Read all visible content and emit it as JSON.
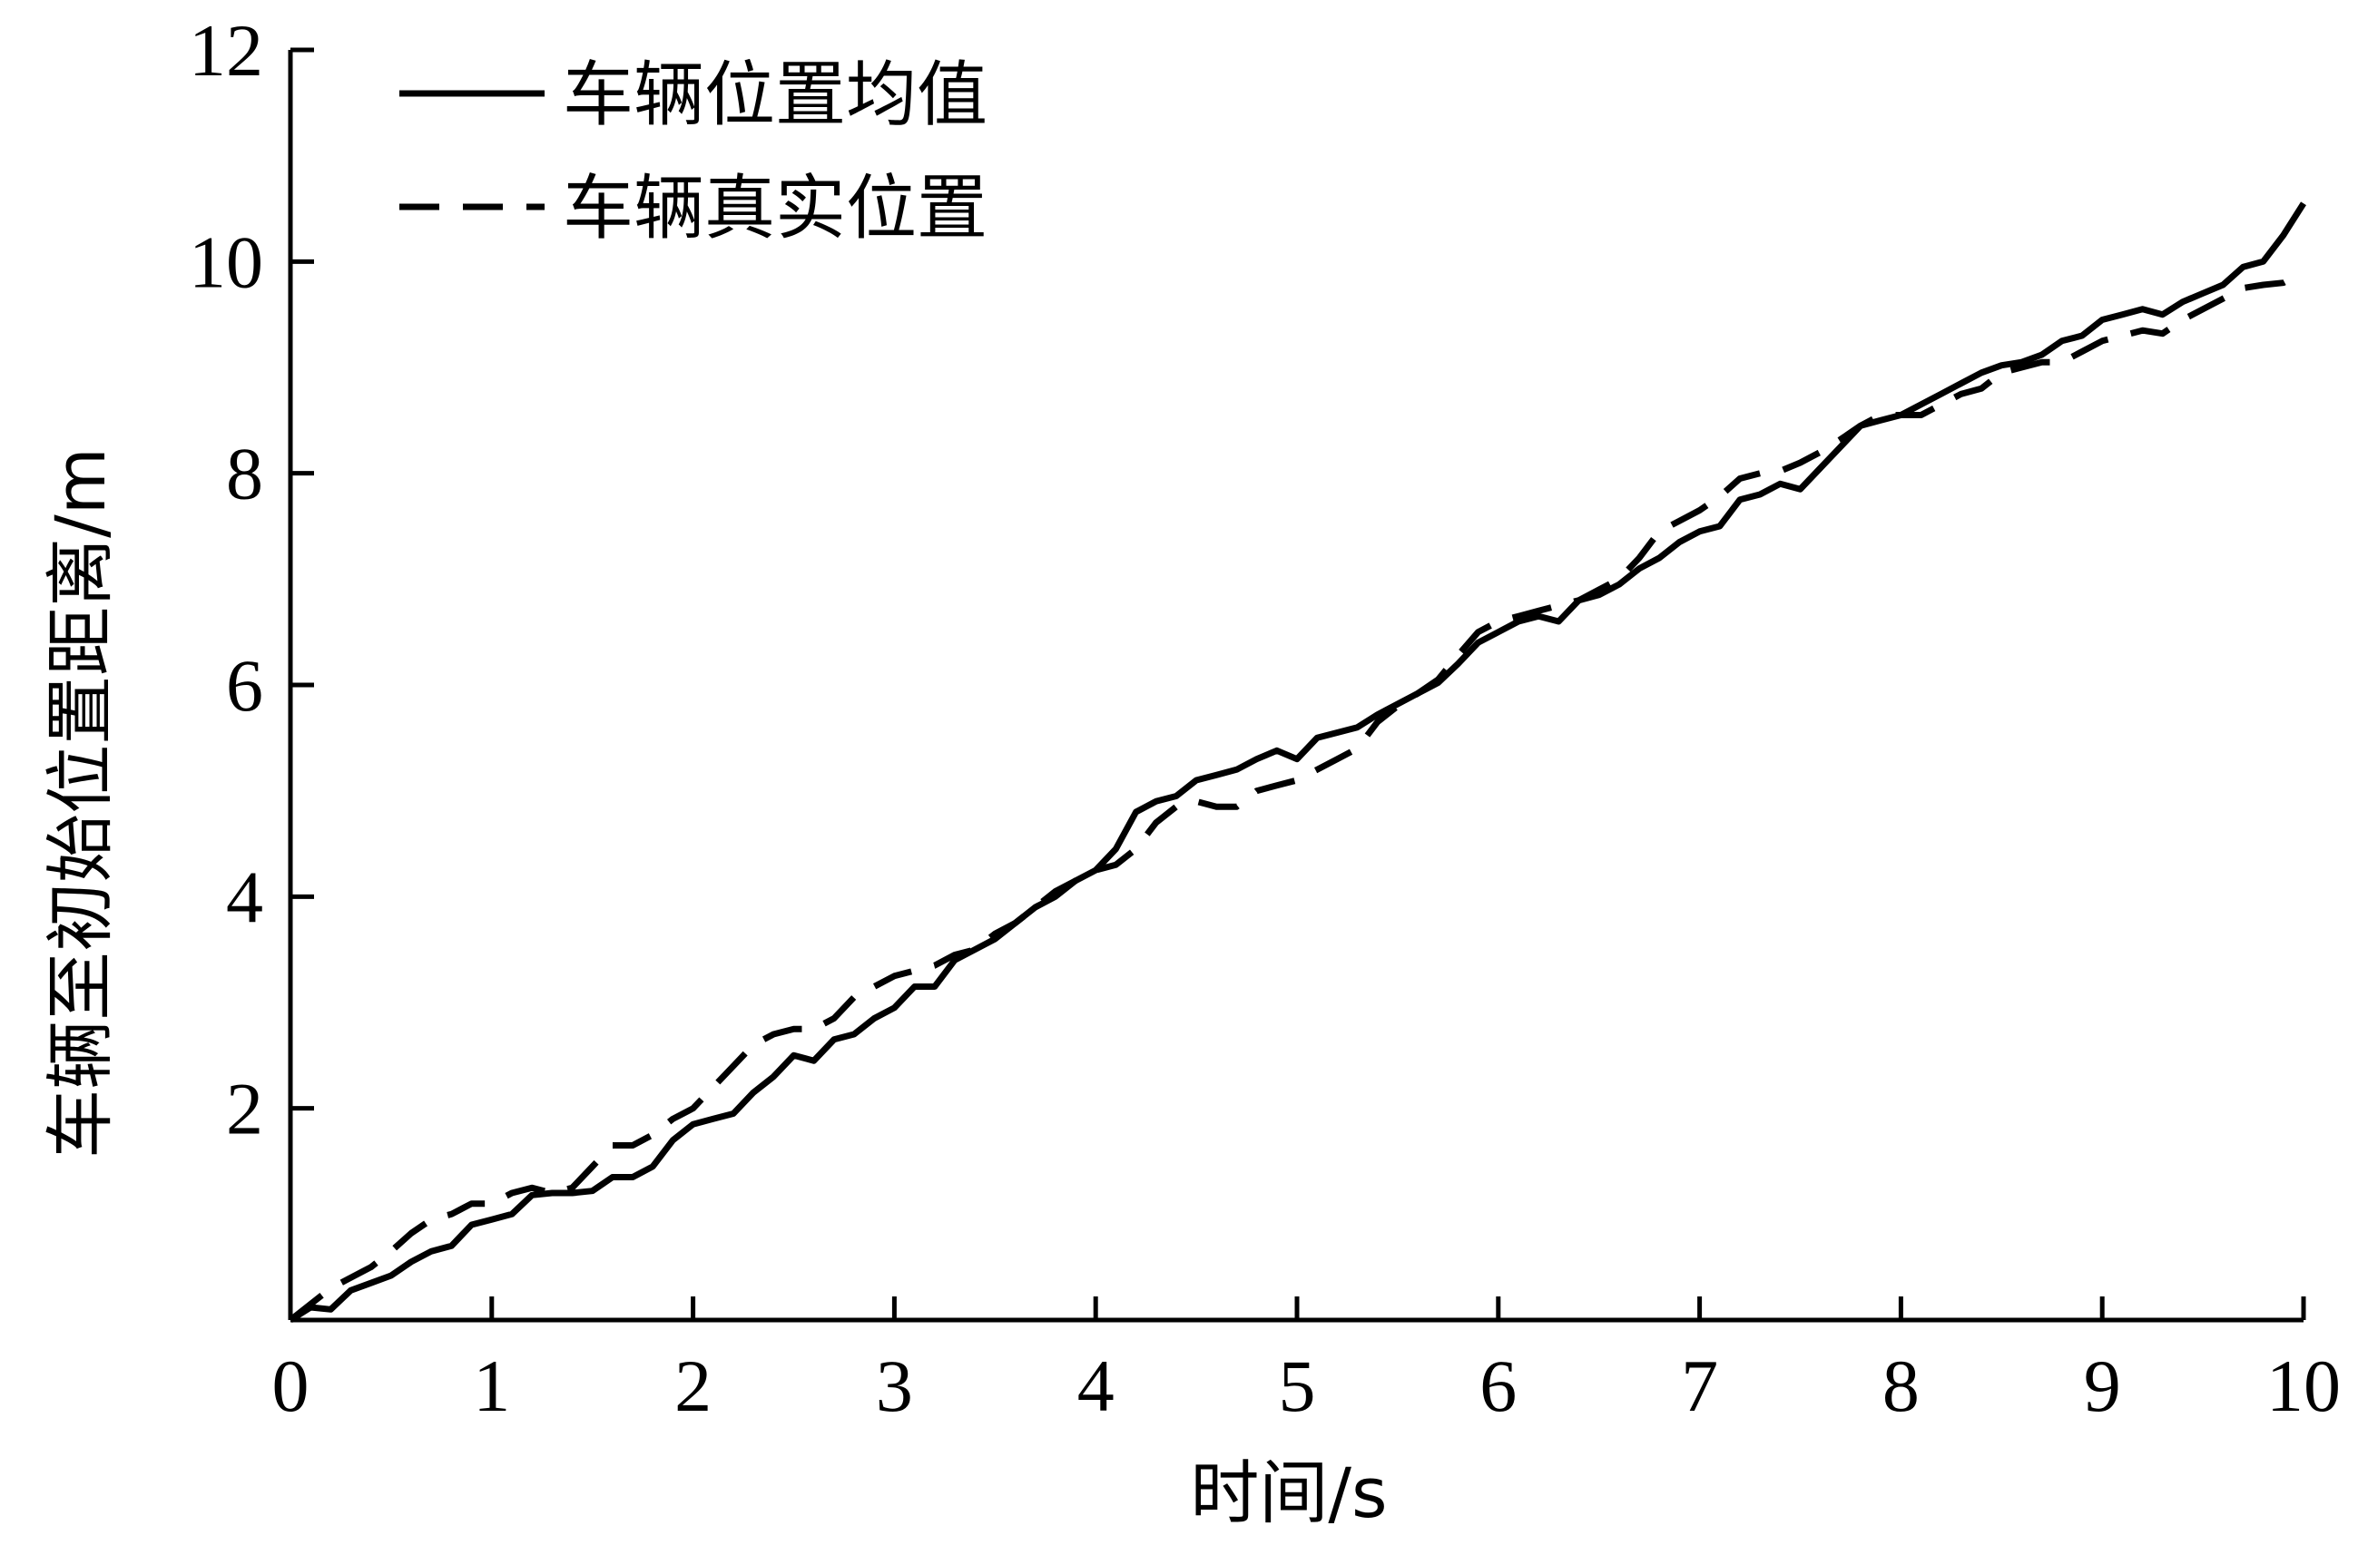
{
  "chart_data": {
    "type": "line",
    "title": "",
    "xlabel": "时间/s",
    "ylabel": "车辆至初始位置距离/m",
    "xlim": [
      0,
      10
    ],
    "ylim": [
      0,
      12
    ],
    "x_ticks": [
      "0",
      "1",
      "2",
      "3",
      "4",
      "5",
      "6",
      "7",
      "8",
      "9",
      "10"
    ],
    "y_ticks": [
      "2",
      "4",
      "6",
      "8",
      "10",
      "12"
    ],
    "grid": false,
    "legend_position": "top-left",
    "series": [
      {
        "name": "车辆位置均值",
        "style": "solid",
        "color": "#000000",
        "x": [
          0,
          0.1,
          0.2,
          0.3,
          0.4,
          0.5,
          0.6,
          0.7,
          0.8,
          0.9,
          1.0,
          1.1,
          1.2,
          1.3,
          1.4,
          1.5,
          1.6,
          1.7,
          1.8,
          1.9,
          2.0,
          2.1,
          2.2,
          2.3,
          2.4,
          2.5,
          2.6,
          2.7,
          2.8,
          2.9,
          3.0,
          3.1,
          3.2,
          3.3,
          3.4,
          3.5,
          3.6,
          3.7,
          3.8,
          3.9,
          4.0,
          4.1,
          4.2,
          4.3,
          4.4,
          4.5,
          4.6,
          4.7,
          4.8,
          4.9,
          5.0,
          5.1,
          5.2,
          5.3,
          5.4,
          5.5,
          5.6,
          5.7,
          5.8,
          5.9,
          6.0,
          6.1,
          6.2,
          6.3,
          6.4,
          6.5,
          6.6,
          6.7,
          6.8,
          6.9,
          7.0,
          7.1,
          7.2,
          7.3,
          7.4,
          7.5,
          7.6,
          7.7,
          7.8,
          7.9,
          8.0,
          8.1,
          8.2,
          8.3,
          8.4,
          8.5,
          8.6,
          8.7,
          8.8,
          8.9,
          9.0,
          9.1,
          9.2,
          9.3,
          9.4,
          9.5,
          9.6,
          9.7,
          9.8,
          9.9,
          10.0
        ],
        "values": [
          0.0,
          0.12,
          0.1,
          0.28,
          0.35,
          0.42,
          0.55,
          0.65,
          0.7,
          0.9,
          0.95,
          1.0,
          1.18,
          1.2,
          1.2,
          1.22,
          1.35,
          1.35,
          1.45,
          1.7,
          1.85,
          1.9,
          1.95,
          2.15,
          2.3,
          2.5,
          2.45,
          2.65,
          2.7,
          2.85,
          2.95,
          3.15,
          3.15,
          3.4,
          3.5,
          3.6,
          3.75,
          3.9,
          4.0,
          4.15,
          4.25,
          4.45,
          4.8,
          4.9,
          4.95,
          5.1,
          5.15,
          5.2,
          5.3,
          5.38,
          5.3,
          5.5,
          5.55,
          5.6,
          5.72,
          5.82,
          5.92,
          6.02,
          6.2,
          6.4,
          6.5,
          6.6,
          6.65,
          6.6,
          6.8,
          6.85,
          6.95,
          7.1,
          7.2,
          7.35,
          7.45,
          7.5,
          7.75,
          7.8,
          7.9,
          7.85,
          8.05,
          8.25,
          8.45,
          8.5,
          8.55,
          8.65,
          8.75,
          8.85,
          8.95,
          9.02,
          9.05,
          9.12,
          9.25,
          9.3,
          9.45,
          9.5,
          9.55,
          9.5,
          9.62,
          9.7,
          9.78,
          9.95,
          10.0,
          10.25,
          10.55
        ]
      },
      {
        "name": "车辆真实位置",
        "style": "dashed",
        "color": "#000000",
        "x": [
          0,
          0.1,
          0.2,
          0.3,
          0.4,
          0.5,
          0.6,
          0.7,
          0.8,
          0.9,
          1.0,
          1.1,
          1.2,
          1.3,
          1.4,
          1.5,
          1.6,
          1.7,
          1.8,
          1.9,
          2.0,
          2.1,
          2.2,
          2.3,
          2.4,
          2.5,
          2.6,
          2.7,
          2.8,
          2.9,
          3.0,
          3.1,
          3.2,
          3.3,
          3.4,
          3.5,
          3.6,
          3.7,
          3.8,
          3.9,
          4.0,
          4.1,
          4.2,
          4.3,
          4.4,
          4.5,
          4.6,
          4.7,
          4.8,
          4.9,
          5.0,
          5.1,
          5.2,
          5.3,
          5.4,
          5.5,
          5.6,
          5.7,
          5.8,
          5.9,
          6.0,
          6.1,
          6.2,
          6.3,
          6.4,
          6.5,
          6.6,
          6.7,
          6.8,
          6.9,
          7.0,
          7.1,
          7.2,
          7.3,
          7.4,
          7.5,
          7.6,
          7.7,
          7.8,
          7.9,
          8.0,
          8.1,
          8.2,
          8.3,
          8.4,
          8.5,
          8.6,
          8.7,
          8.8,
          8.9,
          9.0,
          9.1,
          9.2,
          9.3,
          9.4,
          9.5,
          9.6,
          9.7,
          9.8,
          9.9,
          10.0
        ],
        "values": [
          0.0,
          0.15,
          0.3,
          0.4,
          0.5,
          0.65,
          0.82,
          0.95,
          1.0,
          1.1,
          1.1,
          1.2,
          1.25,
          1.2,
          1.25,
          1.45,
          1.65,
          1.65,
          1.75,
          1.9,
          2.0,
          2.2,
          2.4,
          2.6,
          2.7,
          2.75,
          2.75,
          2.85,
          3.05,
          3.15,
          3.25,
          3.3,
          3.35,
          3.45,
          3.5,
          3.65,
          3.75,
          3.9,
          4.05,
          4.15,
          4.25,
          4.3,
          4.45,
          4.7,
          4.85,
          4.9,
          4.85,
          4.85,
          5.0,
          5.05,
          5.1,
          5.2,
          5.3,
          5.4,
          5.65,
          5.8,
          5.92,
          6.05,
          6.28,
          6.5,
          6.6,
          6.65,
          6.7,
          6.75,
          6.8,
          6.9,
          7.0,
          7.2,
          7.45,
          7.55,
          7.65,
          7.78,
          7.95,
          8.0,
          8.02,
          8.1,
          8.2,
          8.32,
          8.45,
          8.55,
          8.55,
          8.55,
          8.65,
          8.75,
          8.8,
          8.95,
          9.0,
          9.05,
          9.05,
          9.15,
          9.25,
          9.3,
          9.35,
          9.32,
          9.45,
          9.55,
          9.65,
          9.75,
          9.78,
          9.8,
          9.9
        ]
      }
    ]
  }
}
